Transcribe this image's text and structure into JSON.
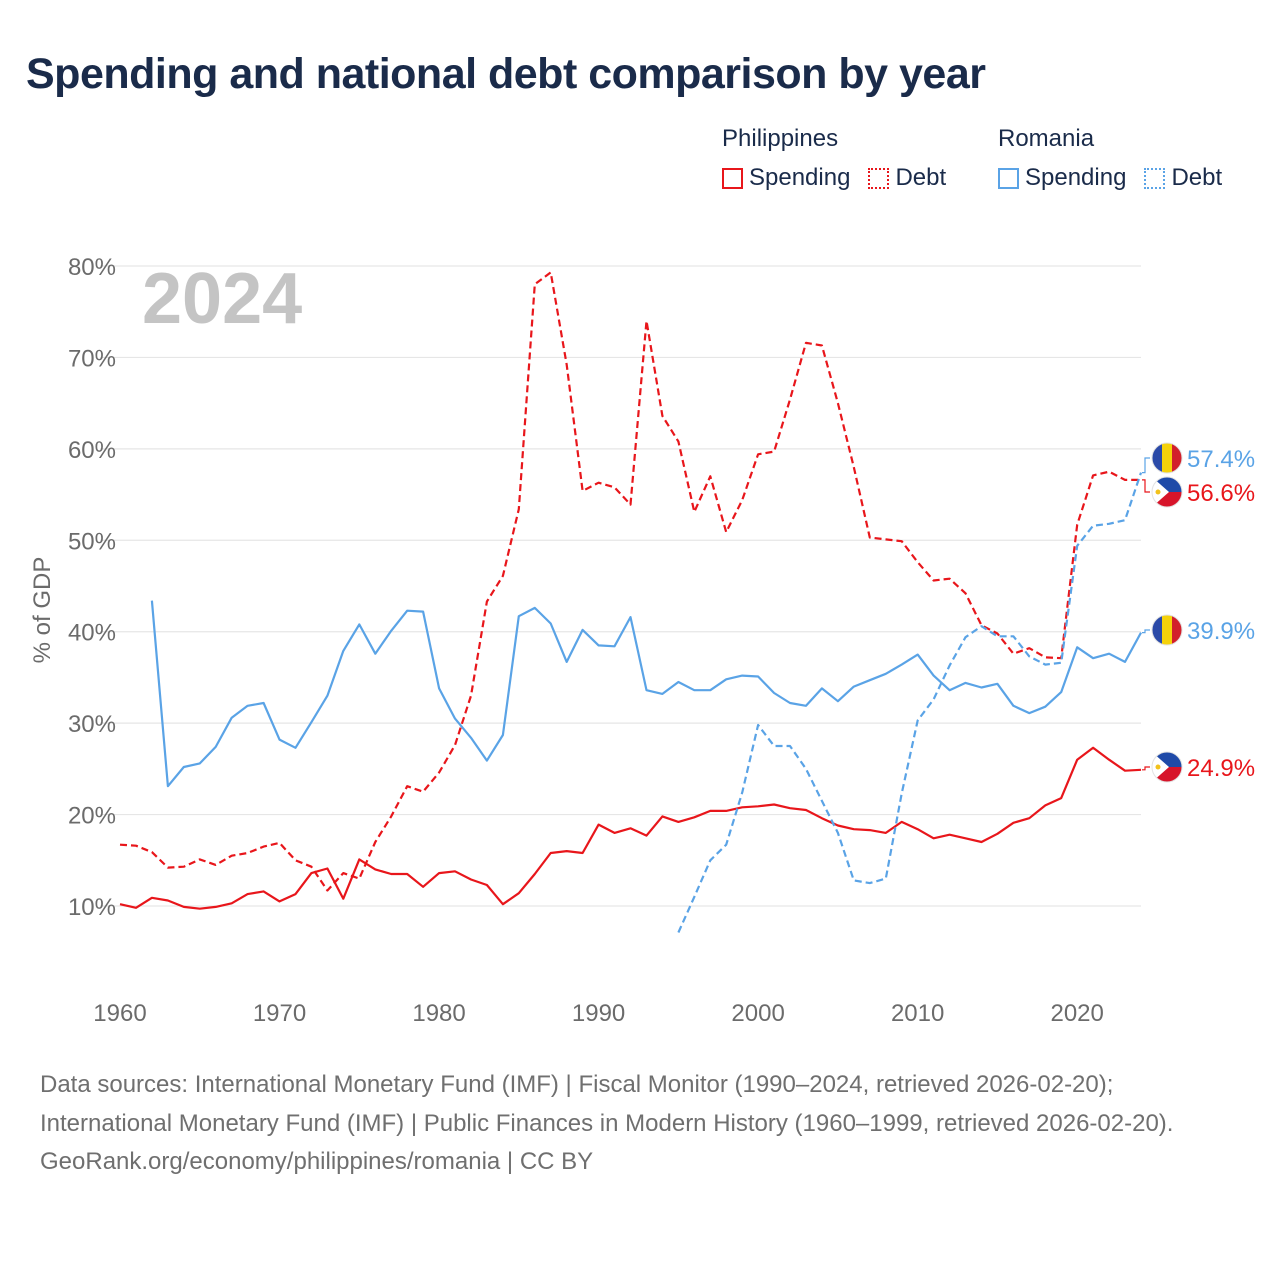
{
  "title": "Spending and national debt comparison by year",
  "legend": {
    "philippines": {
      "label": "Philippines",
      "spending": "Spending",
      "debt": "Debt"
    },
    "romania": {
      "label": "Romania",
      "spending": "Spending",
      "debt": "Debt"
    }
  },
  "colors": {
    "philippines": "#e8161b",
    "romania": "#5aa3e6",
    "grid": "#e6e6e6",
    "axis_text": "#6b6b6b",
    "year_watermark": "#c4c4c4"
  },
  "sources": {
    "line1": "Data sources: International Monetary Fund (IMF) | Fiscal Monitor (1990–2024, retrieved 2026-02-20); International Monetary Fund (IMF) | Public Finances in Modern History (1960–1999, retrieved 2026-02-20).",
    "line2": "GeoRank.org/economy/philippines/romania | CC BY"
  },
  "chart_data": {
    "type": "line",
    "year_label": "2024",
    "ylabel": "% of GDP",
    "xlabel": "",
    "xlim": [
      1960,
      2024
    ],
    "ylim": [
      10,
      80
    ],
    "xticks": [
      1960,
      1970,
      1980,
      1990,
      2000,
      2010,
      2020
    ],
    "yticks": [
      10,
      20,
      30,
      40,
      50,
      60,
      70,
      80
    ],
    "ytick_labels": [
      "10%",
      "20%",
      "30%",
      "40%",
      "50%",
      "60%",
      "70%",
      "80%"
    ],
    "series": [
      {
        "name": "Philippines Spending",
        "country": "Philippines",
        "measure": "Spending",
        "style": "solid",
        "color": "#e8161b",
        "end_label": "24.9%",
        "flag": "philippines",
        "points": [
          [
            1960,
            10.2
          ],
          [
            1961,
            9.8
          ],
          [
            1962,
            10.9
          ],
          [
            1963,
            10.6
          ],
          [
            1964,
            9.9
          ],
          [
            1965,
            9.7
          ],
          [
            1966,
            9.9
          ],
          [
            1967,
            10.3
          ],
          [
            1968,
            11.3
          ],
          [
            1969,
            11.6
          ],
          [
            1970,
            10.5
          ],
          [
            1971,
            11.3
          ],
          [
            1972,
            13.6
          ],
          [
            1973,
            14.1
          ],
          [
            1974,
            10.8
          ],
          [
            1975,
            15.1
          ],
          [
            1976,
            14.0
          ],
          [
            1977,
            13.5
          ],
          [
            1978,
            13.5
          ],
          [
            1979,
            12.1
          ],
          [
            1980,
            13.6
          ],
          [
            1981,
            13.8
          ],
          [
            1982,
            12.9
          ],
          [
            1983,
            12.3
          ],
          [
            1984,
            10.2
          ],
          [
            1985,
            11.4
          ],
          [
            1986,
            13.5
          ],
          [
            1987,
            15.8
          ],
          [
            1988,
            16.0
          ],
          [
            1989,
            15.8
          ],
          [
            1990,
            18.9
          ],
          [
            1991,
            18.0
          ],
          [
            1992,
            18.5
          ],
          [
            1993,
            17.7
          ],
          [
            1994,
            19.8
          ],
          [
            1995,
            19.2
          ],
          [
            1996,
            19.7
          ],
          [
            1997,
            20.4
          ],
          [
            1998,
            20.4
          ],
          [
            1999,
            20.8
          ],
          [
            2000,
            20.9
          ],
          [
            2001,
            21.1
          ],
          [
            2002,
            20.7
          ],
          [
            2003,
            20.5
          ],
          [
            2004,
            19.6
          ],
          [
            2005,
            18.8
          ],
          [
            2006,
            18.4
          ],
          [
            2007,
            18.3
          ],
          [
            2008,
            18.0
          ],
          [
            2009,
            19.2
          ],
          [
            2010,
            18.4
          ],
          [
            2011,
            17.4
          ],
          [
            2012,
            17.8
          ],
          [
            2013,
            17.4
          ],
          [
            2014,
            17.0
          ],
          [
            2015,
            17.9
          ],
          [
            2016,
            19.1
          ],
          [
            2017,
            19.6
          ],
          [
            2018,
            21.0
          ],
          [
            2019,
            21.8
          ],
          [
            2020,
            26.0
          ],
          [
            2021,
            27.3
          ],
          [
            2022,
            26.0
          ],
          [
            2023,
            24.8
          ],
          [
            2024,
            24.9
          ]
        ]
      },
      {
        "name": "Philippines Debt",
        "country": "Philippines",
        "measure": "Debt",
        "style": "dashed",
        "color": "#e8161b",
        "end_label": "56.6%",
        "flag": "philippines",
        "points": [
          [
            1960,
            16.7
          ],
          [
            1961,
            16.6
          ],
          [
            1962,
            15.9
          ],
          [
            1963,
            14.2
          ],
          [
            1964,
            14.3
          ],
          [
            1965,
            15.1
          ],
          [
            1966,
            14.5
          ],
          [
            1967,
            15.5
          ],
          [
            1968,
            15.8
          ],
          [
            1969,
            16.5
          ],
          [
            1970,
            16.9
          ],
          [
            1971,
            15.0
          ],
          [
            1972,
            14.3
          ],
          [
            1973,
            11.7
          ],
          [
            1974,
            13.6
          ],
          [
            1975,
            13.0
          ],
          [
            1976,
            17.0
          ],
          [
            1977,
            19.8
          ],
          [
            1978,
            23.1
          ],
          [
            1979,
            22.5
          ],
          [
            1980,
            24.6
          ],
          [
            1981,
            27.6
          ],
          [
            1982,
            33.0
          ],
          [
            1983,
            43.3
          ],
          [
            1984,
            46.1
          ],
          [
            1985,
            53.4
          ],
          [
            1986,
            78.0
          ],
          [
            1987,
            79.3
          ],
          [
            1988,
            69.2
          ],
          [
            1989,
            55.4
          ],
          [
            1990,
            56.3
          ],
          [
            1991,
            55.8
          ],
          [
            1992,
            53.9
          ],
          [
            1993,
            74.0
          ],
          [
            1994,
            63.6
          ],
          [
            1995,
            60.8
          ],
          [
            1996,
            53.1
          ],
          [
            1997,
            57.0
          ],
          [
            1998,
            50.9
          ],
          [
            1999,
            54.4
          ],
          [
            2000,
            59.4
          ],
          [
            2001,
            59.7
          ],
          [
            2002,
            65.4
          ],
          [
            2003,
            71.6
          ],
          [
            2004,
            71.3
          ],
          [
            2005,
            65.0
          ],
          [
            2006,
            58.0
          ],
          [
            2007,
            50.3
          ],
          [
            2008,
            50.1
          ],
          [
            2009,
            49.9
          ],
          [
            2010,
            47.6
          ],
          [
            2011,
            45.6
          ],
          [
            2012,
            45.8
          ],
          [
            2013,
            44.2
          ],
          [
            2014,
            40.7
          ],
          [
            2015,
            39.8
          ],
          [
            2016,
            37.6
          ],
          [
            2017,
            38.2
          ],
          [
            2018,
            37.2
          ],
          [
            2019,
            37.1
          ],
          [
            2020,
            51.7
          ],
          [
            2021,
            57.1
          ],
          [
            2022,
            57.5
          ],
          [
            2023,
            56.6
          ],
          [
            2024,
            56.6
          ]
        ]
      },
      {
        "name": "Romania Spending",
        "country": "Romania",
        "measure": "Spending",
        "style": "solid",
        "color": "#5aa3e6",
        "end_label": "39.9%",
        "flag": "romania",
        "points": [
          [
            1962,
            43.4
          ],
          [
            1963,
            23.1
          ],
          [
            1964,
            25.2
          ],
          [
            1965,
            25.6
          ],
          [
            1966,
            27.4
          ],
          [
            1967,
            30.6
          ],
          [
            1968,
            31.9
          ],
          [
            1969,
            32.2
          ],
          [
            1970,
            28.2
          ],
          [
            1971,
            27.3
          ],
          [
            1972,
            30.1
          ],
          [
            1973,
            33.0
          ],
          [
            1974,
            37.9
          ],
          [
            1975,
            40.8
          ],
          [
            1976,
            37.6
          ],
          [
            1977,
            40.1
          ],
          [
            1978,
            42.3
          ],
          [
            1979,
            42.2
          ],
          [
            1980,
            33.8
          ],
          [
            1981,
            30.5
          ],
          [
            1982,
            28.4
          ],
          [
            1983,
            25.9
          ],
          [
            1984,
            28.7
          ],
          [
            1985,
            41.7
          ],
          [
            1986,
            42.6
          ],
          [
            1987,
            40.9
          ],
          [
            1988,
            36.7
          ],
          [
            1989,
            40.2
          ],
          [
            1990,
            38.5
          ],
          [
            1991,
            38.4
          ],
          [
            1992,
            41.6
          ],
          [
            1993,
            33.6
          ],
          [
            1994,
            33.2
          ],
          [
            1995,
            34.5
          ],
          [
            1996,
            33.6
          ],
          [
            1997,
            33.6
          ],
          [
            1998,
            34.8
          ],
          [
            1999,
            35.2
          ],
          [
            2000,
            35.1
          ],
          [
            2001,
            33.3
          ],
          [
            2002,
            32.2
          ],
          [
            2003,
            31.9
          ],
          [
            2004,
            33.8
          ],
          [
            2005,
            32.4
          ],
          [
            2006,
            34.0
          ],
          [
            2007,
            34.7
          ],
          [
            2008,
            35.4
          ],
          [
            2009,
            36.4
          ],
          [
            2010,
            37.5
          ],
          [
            2011,
            35.2
          ],
          [
            2012,
            33.6
          ],
          [
            2013,
            34.4
          ],
          [
            2014,
            33.9
          ],
          [
            2015,
            34.3
          ],
          [
            2016,
            31.9
          ],
          [
            2017,
            31.1
          ],
          [
            2018,
            31.8
          ],
          [
            2019,
            33.4
          ],
          [
            2020,
            38.3
          ],
          [
            2021,
            37.1
          ],
          [
            2022,
            37.6
          ],
          [
            2023,
            36.7
          ],
          [
            2024,
            39.9
          ]
        ]
      },
      {
        "name": "Romania Debt",
        "country": "Romania",
        "measure": "Debt",
        "style": "dashed",
        "color": "#5aa3e6",
        "end_label": "57.4%",
        "flag": "romania",
        "points": [
          [
            1995,
            7.1
          ],
          [
            1996,
            11.0
          ],
          [
            1997,
            15.0
          ],
          [
            1998,
            16.7
          ],
          [
            1999,
            22.4
          ],
          [
            2000,
            29.8
          ],
          [
            2001,
            27.5
          ],
          [
            2002,
            27.5
          ],
          [
            2003,
            25.0
          ],
          [
            2004,
            21.5
          ],
          [
            2005,
            18.0
          ],
          [
            2006,
            12.8
          ],
          [
            2007,
            12.5
          ],
          [
            2008,
            13.0
          ],
          [
            2009,
            22.3
          ],
          [
            2010,
            30.3
          ],
          [
            2011,
            32.6
          ],
          [
            2012,
            36.3
          ],
          [
            2013,
            39.4
          ],
          [
            2014,
            40.6
          ],
          [
            2015,
            39.5
          ],
          [
            2016,
            39.5
          ],
          [
            2017,
            37.3
          ],
          [
            2018,
            36.4
          ],
          [
            2019,
            36.6
          ],
          [
            2020,
            49.4
          ],
          [
            2021,
            51.6
          ],
          [
            2022,
            51.8
          ],
          [
            2023,
            52.2
          ],
          [
            2024,
            57.4
          ]
        ]
      }
    ]
  }
}
